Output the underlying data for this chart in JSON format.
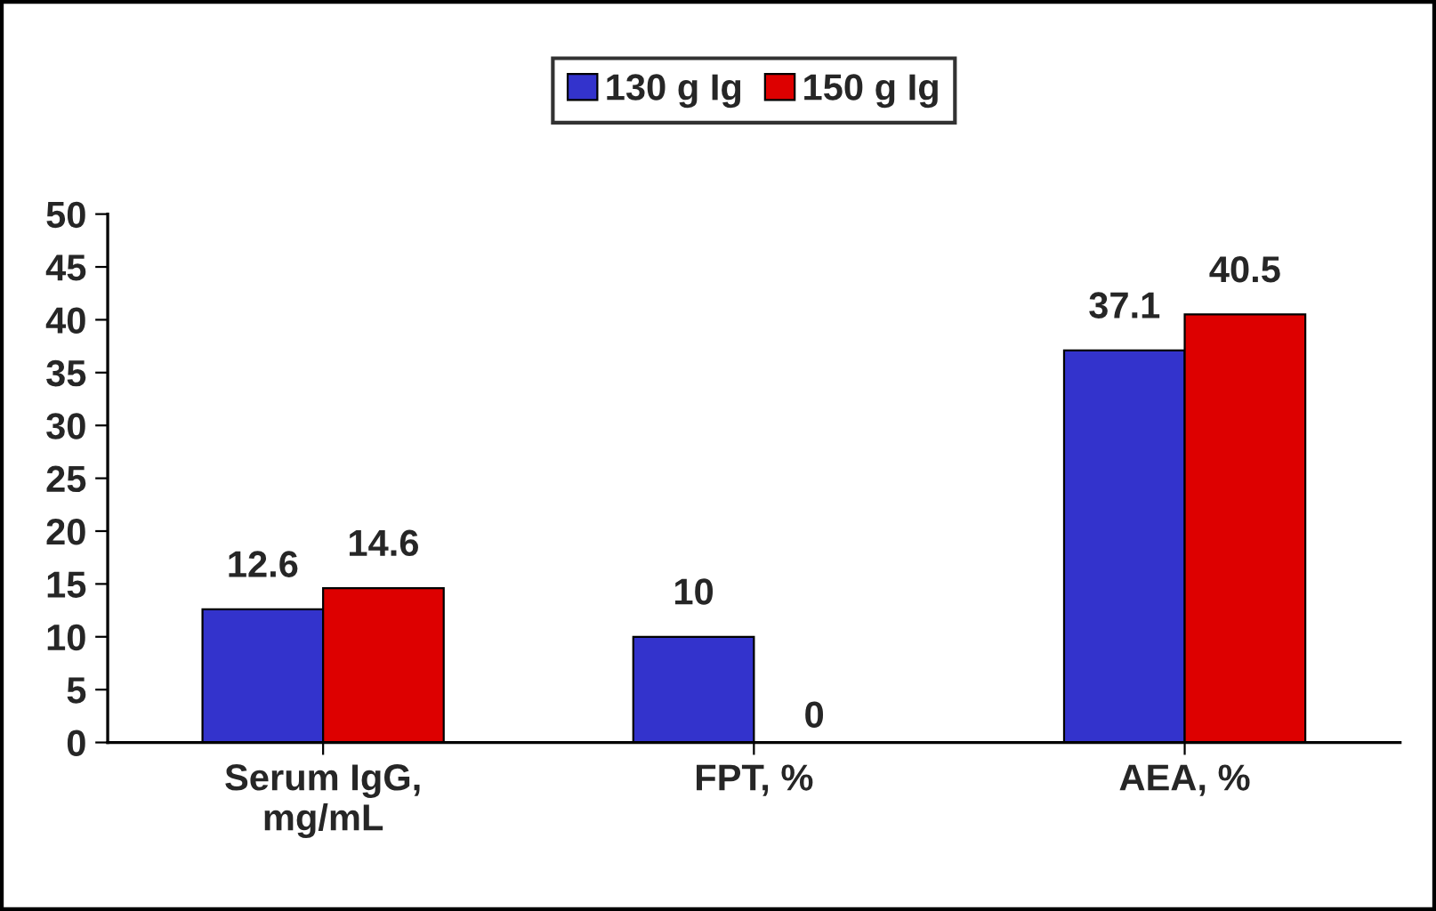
{
  "chart_data": {
    "type": "bar",
    "categories": [
      "Serum IgG,\nmg/mL",
      "FPT, %",
      "AEA, %"
    ],
    "series": [
      {
        "name": "130 g Ig",
        "color": "#3333cc",
        "values": [
          12.6,
          10,
          37.1
        ]
      },
      {
        "name": "150 g Ig",
        "color": "#dd0000",
        "values": [
          14.6,
          0,
          40.5
        ]
      }
    ],
    "ylim": [
      0,
      50
    ],
    "yticks": [
      0,
      5,
      10,
      15,
      20,
      25,
      30,
      35,
      40,
      45,
      50
    ],
    "grid": false,
    "legend": "top",
    "data_labels": true
  }
}
